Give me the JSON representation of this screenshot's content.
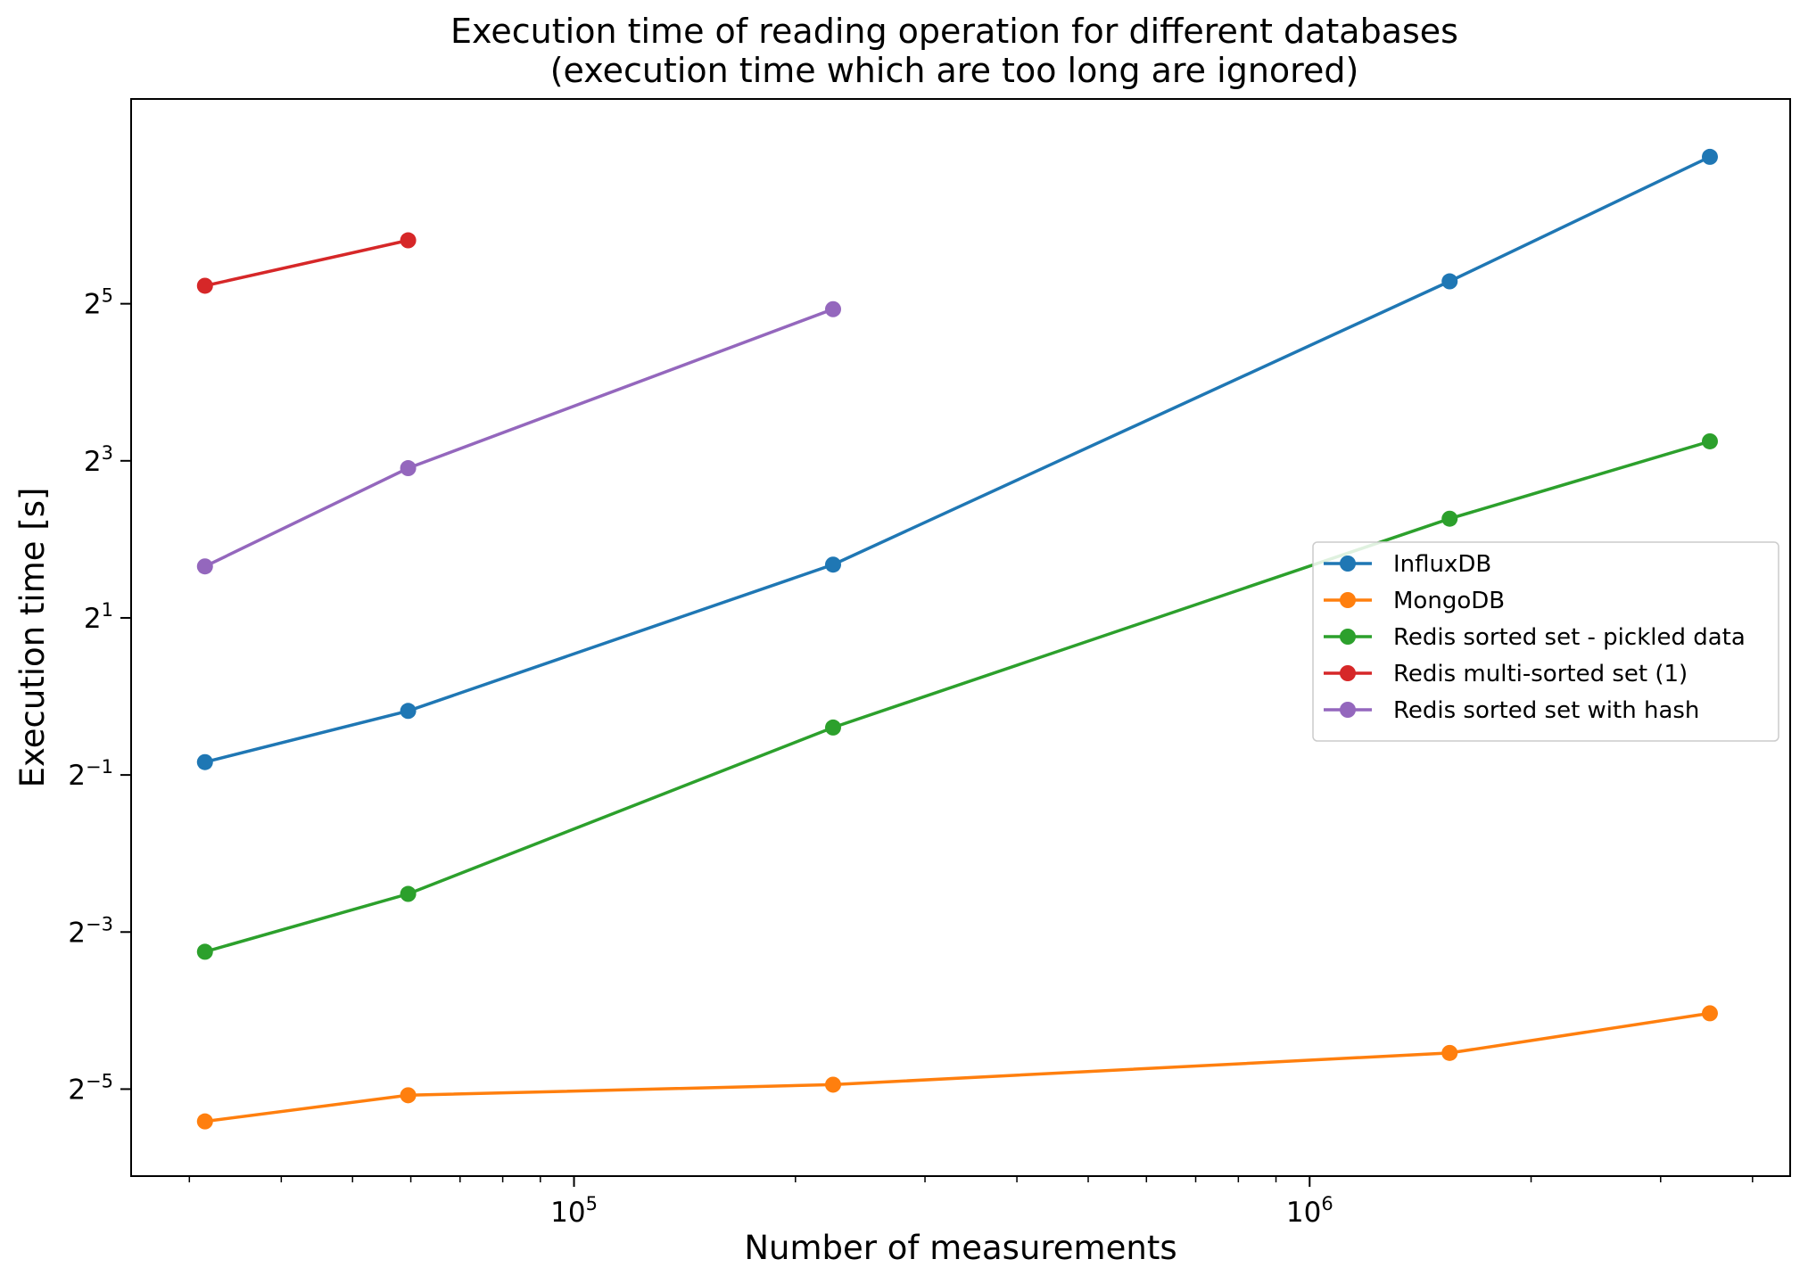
{
  "chart_data": {
    "type": "line",
    "title": "Execution time of reading operation for different databases",
    "subtitle": "(execution time which are too long are ignored)",
    "xlabel": "Number of measurements",
    "ylabel": "Execution time [s]",
    "xscale": "log10",
    "yscale": "log2",
    "xlim": [
      25000,
      4500000
    ],
    "ylim": [
      0.0145,
      195
    ],
    "x_ticks": [
      {
        "value": 100000,
        "base": "10",
        "exp": "5"
      },
      {
        "value": 1000000,
        "base": "10",
        "exp": "6"
      }
    ],
    "y_ticks": [
      {
        "value": 0.03125,
        "base": "2",
        "exp": "−5"
      },
      {
        "value": 0.125,
        "base": "2",
        "exp": "−3"
      },
      {
        "value": 0.5,
        "base": "2",
        "exp": "−1"
      },
      {
        "value": 2,
        "base": "2",
        "exp": "1"
      },
      {
        "value": 8,
        "base": "2",
        "exp": "3"
      },
      {
        "value": 32,
        "base": "2",
        "exp": "5"
      }
    ],
    "grid": false,
    "legend_position": "center-right",
    "series": [
      {
        "name": "InfluxDB",
        "color": "#1f77b4",
        "x": [
          31500,
          59500,
          225000,
          1550000,
          3500000
        ],
        "y": [
          0.56,
          0.88,
          3.2,
          39,
          117
        ]
      },
      {
        "name": "MongoDB",
        "color": "#ff7f0e",
        "x": [
          31500,
          59500,
          225000,
          1550000,
          3500000
        ],
        "y": [
          0.0235,
          0.0296,
          0.0325,
          0.043,
          0.061
        ]
      },
      {
        "name": "Redis sorted set - pickled data",
        "color": "#2ca02c",
        "x": [
          31500,
          59500,
          225000,
          1550000,
          3500000
        ],
        "y": [
          0.105,
          0.175,
          0.76,
          4.8,
          9.5
        ]
      },
      {
        "name": "Redis multi-sorted set (1)",
        "color": "#d62728",
        "x": [
          31500,
          59500
        ],
        "y": [
          37.5,
          56
        ]
      },
      {
        "name": "Redis sorted set with hash",
        "color": "#9467bd",
        "x": [
          31500,
          59500,
          225000
        ],
        "y": [
          3.15,
          7.5,
          30.5
        ]
      }
    ]
  }
}
